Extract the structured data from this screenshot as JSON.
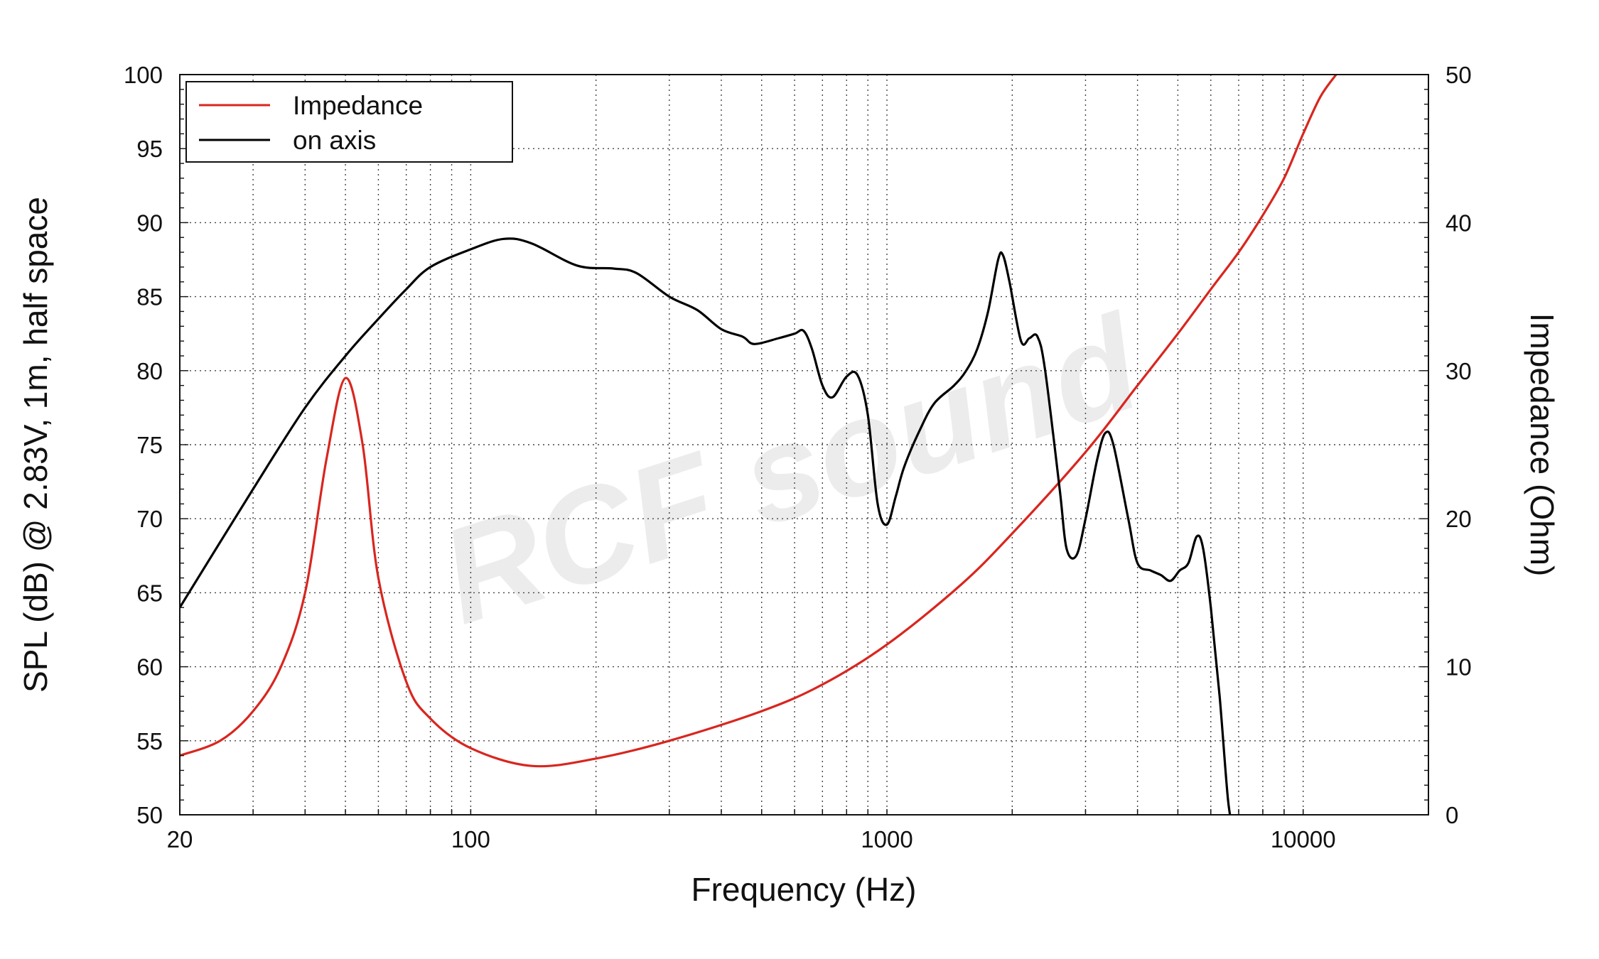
{
  "chart_data": {
    "type": "line",
    "title": "",
    "xlabel": "Frequency (Hz)",
    "ylabel_left": "SPL (dB) @ 2.83V, 1m, half space",
    "ylabel_right": "Impedance (Ohm)",
    "x_scale": "log",
    "xlim": [
      20,
      20000
    ],
    "ylim_left": [
      50,
      100
    ],
    "ylim_right": [
      0,
      50
    ],
    "x_tick_labels": [
      "20",
      "100",
      "1000",
      "10000"
    ],
    "y_left_tick_labels": [
      "50",
      "55",
      "60",
      "65",
      "70",
      "75",
      "80",
      "85",
      "90",
      "95",
      "100"
    ],
    "y_right_tick_labels": [
      "0",
      "10",
      "20",
      "30",
      "40",
      "50"
    ],
    "grid": true,
    "legend_position": "top-left",
    "watermark": "RCF sound",
    "series": [
      {
        "name": "Impedance",
        "axis": "right",
        "color": "#d8261f",
        "points": [
          [
            20,
            4
          ],
          [
            25,
            5
          ],
          [
            30,
            7
          ],
          [
            35,
            10
          ],
          [
            40,
            15
          ],
          [
            45,
            24
          ],
          [
            50,
            29.5
          ],
          [
            55,
            25
          ],
          [
            60,
            16
          ],
          [
            70,
            9
          ],
          [
            80,
            6.5
          ],
          [
            100,
            4.5
          ],
          [
            140,
            3.3
          ],
          [
            200,
            3.8
          ],
          [
            300,
            5
          ],
          [
            500,
            7
          ],
          [
            700,
            8.8
          ],
          [
            1000,
            11.5
          ],
          [
            1500,
            15.5
          ],
          [
            2000,
            19
          ],
          [
            3000,
            24.5
          ],
          [
            4000,
            29
          ],
          [
            5000,
            32.5
          ],
          [
            6000,
            35.5
          ],
          [
            7000,
            38
          ],
          [
            8000,
            40.5
          ],
          [
            9000,
            43
          ],
          [
            10000,
            46
          ],
          [
            11000,
            48.5
          ],
          [
            12000,
            50
          ]
        ]
      },
      {
        "name": "on axis",
        "axis": "left",
        "color": "#000000",
        "points": [
          [
            20,
            64
          ],
          [
            30,
            72
          ],
          [
            40,
            77.5
          ],
          [
            50,
            81
          ],
          [
            60,
            83.5
          ],
          [
            70,
            85.5
          ],
          [
            80,
            87
          ],
          [
            100,
            88.2
          ],
          [
            120,
            88.9
          ],
          [
            140,
            88.6
          ],
          [
            180,
            87.1
          ],
          [
            220,
            86.9
          ],
          [
            250,
            86.6
          ],
          [
            300,
            85
          ],
          [
            350,
            84.1
          ],
          [
            400,
            82.8
          ],
          [
            450,
            82.3
          ],
          [
            480,
            81.8
          ],
          [
            550,
            82.2
          ],
          [
            600,
            82.5
          ],
          [
            630,
            82.7
          ],
          [
            660,
            81.5
          ],
          [
            700,
            79
          ],
          [
            740,
            78.2
          ],
          [
            800,
            79.6
          ],
          [
            850,
            79.7
          ],
          [
            900,
            77
          ],
          [
            950,
            71
          ],
          [
            1000,
            69.6
          ],
          [
            1050,
            71.5
          ],
          [
            1100,
            73.5
          ],
          [
            1200,
            76
          ],
          [
            1300,
            77.8
          ],
          [
            1450,
            79
          ],
          [
            1550,
            80
          ],
          [
            1650,
            81.5
          ],
          [
            1750,
            84
          ],
          [
            1850,
            87.5
          ],
          [
            1900,
            87.8
          ],
          [
            1970,
            86
          ],
          [
            2100,
            82
          ],
          [
            2200,
            82.2
          ],
          [
            2300,
            82.3
          ],
          [
            2400,
            80
          ],
          [
            2600,
            72
          ],
          [
            2700,
            68
          ],
          [
            2850,
            67.5
          ],
          [
            3000,
            70
          ],
          [
            3200,
            74
          ],
          [
            3350,
            75.8
          ],
          [
            3500,
            75
          ],
          [
            3800,
            70
          ],
          [
            4000,
            67
          ],
          [
            4300,
            66.5
          ],
          [
            4550,
            66.2
          ],
          [
            4800,
            65.8
          ],
          [
            5050,
            66.5
          ],
          [
            5300,
            67
          ],
          [
            5550,
            68.8
          ],
          [
            5750,
            68
          ],
          [
            6000,
            64
          ],
          [
            6300,
            58
          ],
          [
            6600,
            51
          ],
          [
            6800,
            49
          ]
        ]
      }
    ]
  },
  "legend": {
    "items": [
      {
        "label": "Impedance",
        "color": "#d8261f"
      },
      {
        "label": "on axis",
        "color": "#000000"
      }
    ]
  }
}
